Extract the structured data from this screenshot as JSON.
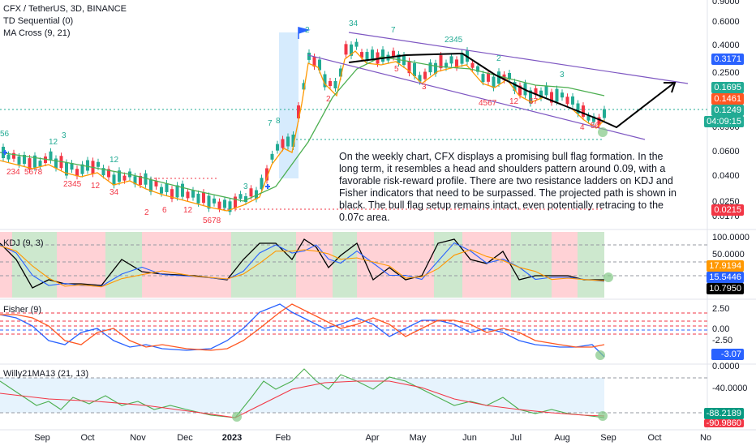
{
  "legend": {
    "symbol_line": "CFX / TetherUS, 3D, BINANCE",
    "td_line": "TD Sequential (0)",
    "ma_line": "MA Cross (9, 21)"
  },
  "annotation": "On the weekly chart, CFX displays a promising bull flag formation. In the long term, it resembles a head and shoulders pattern around 0.09, with a favorable risk-reward profile. There are two resistance ladders on KDJ and Fisher indicators that need to be surpassed. The projected path is shown in black. The bull flag setup remains intact, even potentially retracing to the 0.07c area.",
  "price_axis": {
    "ticks": [
      "0.9000",
      "0.6000",
      "0.4000",
      "0.2500",
      "0.0900",
      "0.0600",
      "0.0400",
      "0.0250",
      "0.0170"
    ],
    "tags": [
      {
        "value": "0.3171",
        "color": "#2962ff"
      },
      {
        "value": "0.1695",
        "color": "#22ab94"
      },
      {
        "value": "0.1461",
        "color": "#ff5722"
      },
      {
        "value": "0.1249",
        "color": "#22ab94"
      },
      {
        "value": "04:09:15",
        "color": "#22ab94"
      },
      {
        "value": "0.0215",
        "color": "#f23645"
      }
    ]
  },
  "kdj": {
    "label": "KDJ (9, 3)",
    "ticks": [
      "100.0000",
      "50.0000"
    ],
    "tags": [
      {
        "value": "17.9194",
        "color": "#ff9800"
      },
      {
        "value": "15.5446",
        "color": "#2962ff"
      },
      {
        "value": "10.7950",
        "color": "#000000"
      }
    ]
  },
  "fisher": {
    "label": "Fisher (9)",
    "ticks": [
      "2.50",
      "0.00",
      "-2.50"
    ],
    "tags": [
      {
        "value": "-3.07",
        "color": "#2962ff"
      }
    ]
  },
  "willy": {
    "label": "Willy21MA13 (21, 13)",
    "ticks": [
      "0.0000",
      "-40.0000"
    ],
    "tags": [
      {
        "value": "-88.2189",
        "color": "#089981"
      },
      {
        "value": "-90.9860",
        "color": "#f23645"
      }
    ]
  },
  "time_axis": {
    "labels": [
      {
        "text": "Sep",
        "bold": false
      },
      {
        "text": "Oct",
        "bold": false
      },
      {
        "text": "Nov",
        "bold": false
      },
      {
        "text": "Dec",
        "bold": false
      },
      {
        "text": "2023",
        "bold": true
      },
      {
        "text": "Feb",
        "bold": false
      },
      {
        "text": "Apr",
        "bold": false
      },
      {
        "text": "May",
        "bold": false
      },
      {
        "text": "Jun",
        "bold": false
      },
      {
        "text": "Jul",
        "bold": false
      },
      {
        "text": "Aug",
        "bold": false
      },
      {
        "text": "Sep",
        "bold": false
      },
      {
        "text": "Oct",
        "bold": false
      },
      {
        "text": "No",
        "bold": false
      }
    ]
  },
  "colors": {
    "up": "#22ab94",
    "down": "#f23645",
    "ma_fast": "#ff9800",
    "ma_slow": "#4caf50",
    "channel": "#7e57c2",
    "projection": "#000000",
    "kdj_green": "#c8e6c9",
    "kdj_red": "#ffcdd2",
    "willy_band": "#e3f2fd"
  }
}
